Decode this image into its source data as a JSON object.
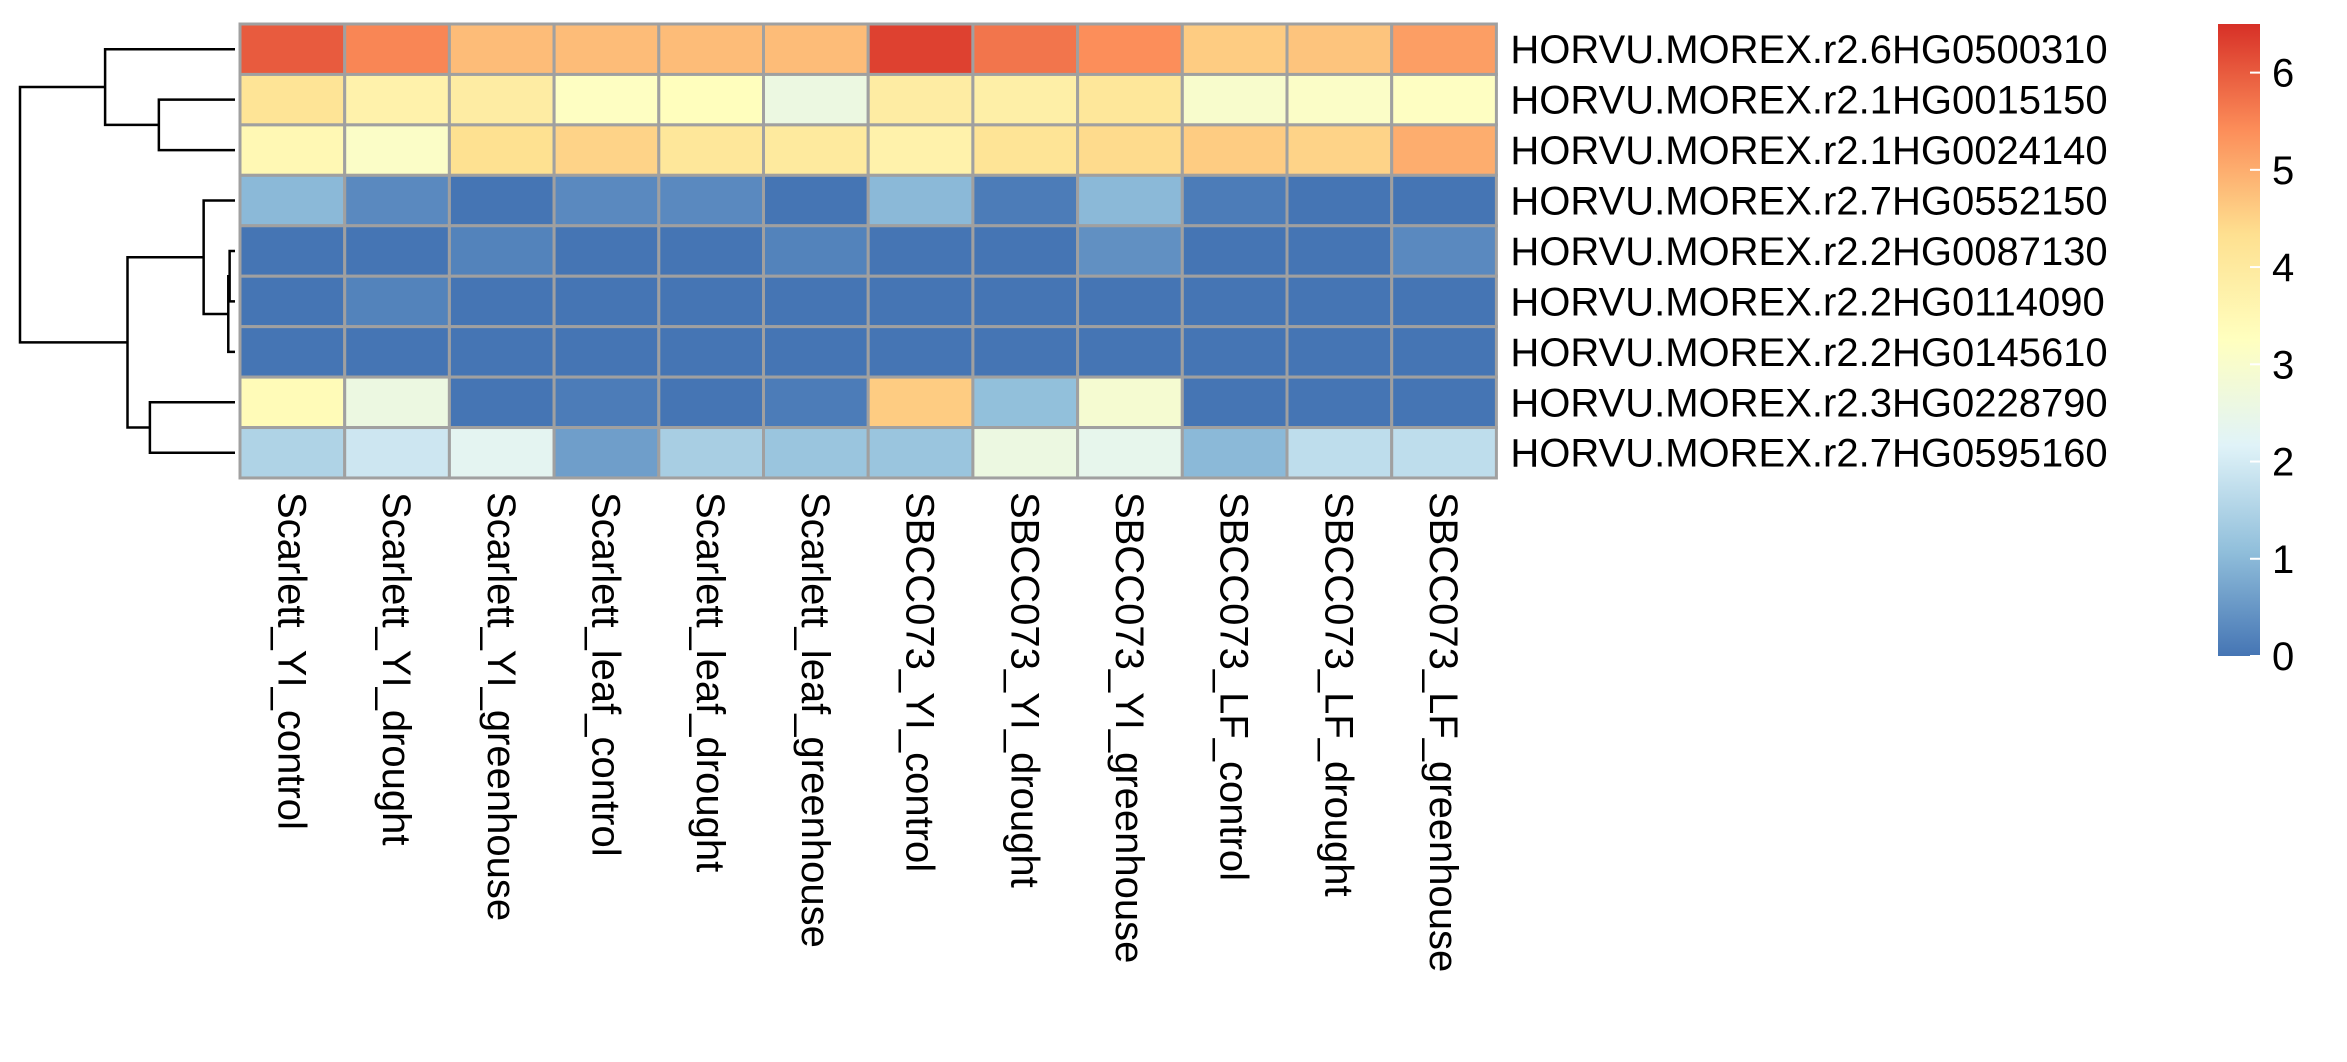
{
  "chart_data": {
    "type": "heatmap",
    "title": "",
    "xlabel": "",
    "ylabel": "",
    "columns": [
      "Scarlett_YI_control",
      "Scarlett_YI_drought",
      "Scarlett_YI_greenhouse",
      "Scarlett_leaf_control",
      "Scarlett_leaf_drought",
      "Scarlett_leaf_greenhouse",
      "SBCC073_YI_control",
      "SBCC073_YI_drought",
      "SBCC073_YI_greenhouse",
      "SBCC073_LF_control",
      "SBCC073_LF_drought",
      "SBCC073_LF_greenhouse"
    ],
    "rows": [
      "HORVU.MOREX.r2.6HG0500310",
      "HORVU.MOREX.r2.1HG0015150",
      "HORVU.MOREX.r2.1HG0024140",
      "HORVU.MOREX.r2.7HG0552150",
      "HORVU.MOREX.r2.2HG0087130",
      "HORVU.MOREX.r2.2HG0114090",
      "HORVU.MOREX.r2.2HG0145610",
      "HORVU.MOREX.r2.3HG0228790",
      "HORVU.MOREX.r2.7HG0595160"
    ],
    "values": [
      [
        6.0,
        5.5,
        4.8,
        4.8,
        4.8,
        4.8,
        6.3,
        5.7,
        5.4,
        4.6,
        4.7,
        5.2
      ],
      [
        4.2,
        3.7,
        3.9,
        3.2,
        3.3,
        2.6,
        3.9,
        3.8,
        4.1,
        3.0,
        3.1,
        3.2
      ],
      [
        3.5,
        3.1,
        4.3,
        4.5,
        4.1,
        4.0,
        3.7,
        4.2,
        4.4,
        4.6,
        4.5,
        5.0
      ],
      [
        1.0,
        0.3,
        0.0,
        0.3,
        0.3,
        0.0,
        1.0,
        0.1,
        1.0,
        0.1,
        0.0,
        0.0
      ],
      [
        0.0,
        0.0,
        0.2,
        0.0,
        0.0,
        0.2,
        0.0,
        0.0,
        0.4,
        0.0,
        0.0,
        0.3
      ],
      [
        0.0,
        0.2,
        0.0,
        0.0,
        0.0,
        0.0,
        0.0,
        0.0,
        0.0,
        0.0,
        0.0,
        0.0
      ],
      [
        0.0,
        0.0,
        0.0,
        0.0,
        0.0,
        0.0,
        0.0,
        0.0,
        0.0,
        0.0,
        0.0,
        0.0
      ],
      [
        3.4,
        2.6,
        0.0,
        0.1,
        0.0,
        0.1,
        4.6,
        1.1,
        2.9,
        0.0,
        0.0,
        0.0
      ],
      [
        1.5,
        1.9,
        2.3,
        0.6,
        1.4,
        1.2,
        1.2,
        2.6,
        2.4,
        1.0,
        1.7,
        1.7
      ]
    ],
    "legend": {
      "placement": "right",
      "min": 0,
      "max": 6.5,
      "ticks": [
        0,
        1,
        2,
        3,
        4,
        5,
        6
      ],
      "colors": [
        "#4575b4",
        "#91bfdb",
        "#e0f3f8",
        "#ffffbf",
        "#fee090",
        "#fc8d59",
        "#d73027"
      ]
    },
    "dendrogram": {
      "side": "left",
      "merges": [
        [
          -5,
          -6,
          0.12
        ],
        [
          1,
          -7,
          0.15
        ],
        [
          -4,
          2,
          0.7
        ],
        [
          -8,
          -9,
          1.9
        ],
        [
          3,
          4,
          2.4
        ],
        [
          -2,
          -3,
          1.7
        ],
        [
          -1,
          6,
          2.9
        ],
        [
          7,
          5,
          4.8
        ]
      ]
    },
    "cell_border_color": "#a0a0a0"
  }
}
